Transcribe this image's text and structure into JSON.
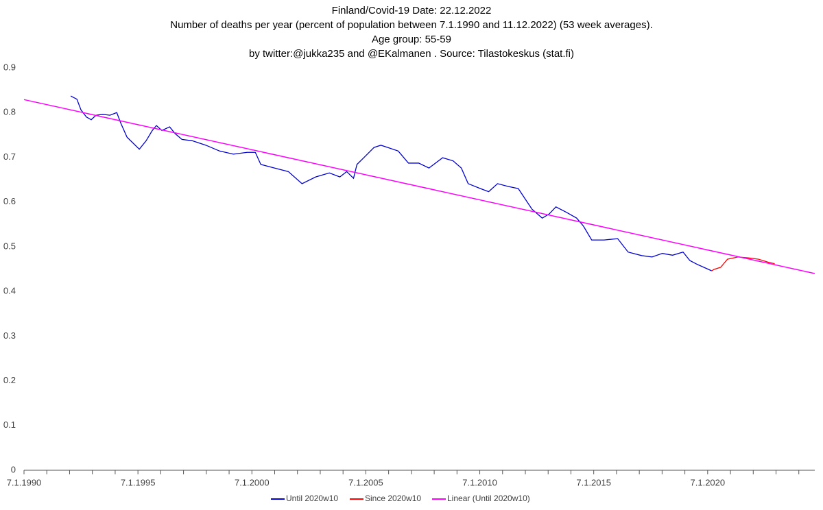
{
  "chart_data": {
    "type": "line",
    "title_lines": [
      "Finland/Covid-19  Date: 22.12.2022",
      "Number of deaths per year (percent of population between 7.1.1990 and 11.12.2022) (53 week averages).",
      "Age group: 55-59",
      "by twitter:@jukka235 and @EKalmanen . Source: Tilastokeskus (stat.fi)"
    ],
    "xlim": [
      1990,
      2024.7
    ],
    "xticks": [
      {
        "value": 1990,
        "label": "7.1.1990"
      },
      {
        "value": 1995,
        "label": "7.1.1995"
      },
      {
        "value": 2000,
        "label": "7.1.2000"
      },
      {
        "value": 2005,
        "label": "7.1.2005"
      },
      {
        "value": 2010,
        "label": "7.1.2010"
      },
      {
        "value": 2015,
        "label": "7.1.2015"
      },
      {
        "value": 2020,
        "label": "7.1.2020"
      }
    ],
    "xminorticks": [
      1991,
      1992,
      1993,
      1994,
      1996,
      1997,
      1998,
      1999,
      2001,
      2002,
      2003,
      2004,
      2006,
      2007,
      2008,
      2009,
      2011,
      2012,
      2013,
      2014,
      2016,
      2017,
      2018,
      2019,
      2021,
      2022,
      2023,
      2024
    ],
    "ylim": [
      0,
      0.9
    ],
    "yticks": [
      0,
      0.1,
      0.2,
      0.3,
      0.4,
      0.5,
      0.6,
      0.7,
      0.8,
      0.9
    ],
    "legend": "bottom",
    "series": [
      {
        "name": "Until 2020w10",
        "color": "#0000cc",
        "x": [
          1992.05,
          1992.32,
          1992.5,
          1992.74,
          1992.95,
          1993.16,
          1993.46,
          1993.77,
          1994.07,
          1994.25,
          1994.52,
          1994.82,
          1995.06,
          1995.36,
          1995.63,
          1995.81,
          1996.05,
          1996.39,
          1996.63,
          1996.93,
          1997.38,
          1997.98,
          1998.58,
          1999.19,
          1999.79,
          2000.15,
          2000.39,
          2000.99,
          2001.6,
          2002.2,
          2002.8,
          2003.4,
          2003.86,
          2004.16,
          2004.46,
          2004.61,
          2004.91,
          2005.36,
          2005.66,
          2005.96,
          2006.42,
          2006.87,
          2007.32,
          2007.77,
          2008.37,
          2008.83,
          2009.19,
          2009.49,
          2010.03,
          2010.39,
          2010.78,
          2011.23,
          2011.69,
          2011.99,
          2012.29,
          2012.74,
          2013.04,
          2013.34,
          2013.8,
          2014.25,
          2014.55,
          2014.91,
          2015.45,
          2016.05,
          2016.51,
          2017.11,
          2017.56,
          2018.01,
          2018.46,
          2018.92,
          2019.22,
          2019.52,
          2020.18
        ],
        "values": [
          0.837,
          0.83,
          0.806,
          0.79,
          0.784,
          0.794,
          0.796,
          0.794,
          0.8,
          0.776,
          0.745,
          0.73,
          0.718,
          0.737,
          0.76,
          0.771,
          0.76,
          0.768,
          0.753,
          0.74,
          0.737,
          0.727,
          0.714,
          0.707,
          0.711,
          0.711,
          0.684,
          0.676,
          0.668,
          0.641,
          0.656,
          0.665,
          0.656,
          0.668,
          0.653,
          0.684,
          0.699,
          0.722,
          0.727,
          0.722,
          0.714,
          0.687,
          0.687,
          0.676,
          0.699,
          0.692,
          0.676,
          0.641,
          0.63,
          0.623,
          0.641,
          0.635,
          0.63,
          0.607,
          0.584,
          0.564,
          0.573,
          0.589,
          0.577,
          0.564,
          0.546,
          0.515,
          0.515,
          0.518,
          0.488,
          0.48,
          0.477,
          0.485,
          0.481,
          0.488,
          0.469,
          0.461,
          0.446
        ]
      },
      {
        "name": "Since 2020w10",
        "color": "#ff0000",
        "x": [
          2020.18,
          2020.27,
          2020.57,
          2020.87,
          2021.33,
          2021.78,
          2022.23,
          2022.68,
          2022.94
        ],
        "values": [
          0.446,
          0.449,
          0.454,
          0.472,
          0.477,
          0.475,
          0.472,
          0.465,
          0.462
        ]
      },
      {
        "name": "Linear (Until 2020w10)",
        "color": "#ff00ff",
        "x": [
          1990,
          2024.7
        ],
        "values": [
          0.829,
          0.44
        ]
      }
    ]
  }
}
